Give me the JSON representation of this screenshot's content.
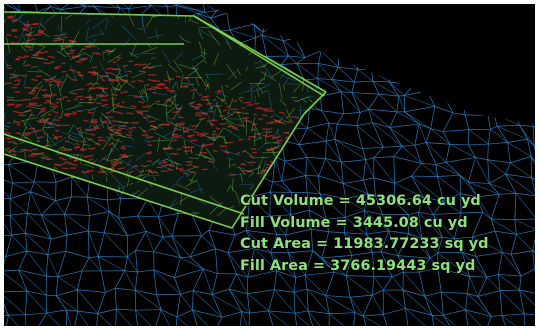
{
  "colors": {
    "background": "#000000",
    "ground_mesh": "#2a8fd6",
    "design_surface_mesh": "#7fd84a",
    "cut_region": "#b02a2a",
    "readout_text": "#8ee07a"
  },
  "readout": {
    "cut_volume": "Cut Volume = 45306.64 cu yd",
    "fill_volume": "Fill Volume = 3445.08 cu yd",
    "cut_area": "Cut Area = 11983.77233 sq yd",
    "fill_area": "Fill Area = 3766.19443 sq yd"
  }
}
